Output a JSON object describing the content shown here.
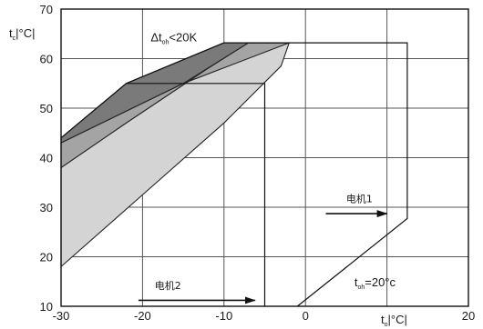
{
  "chart_data": {
    "type": "area",
    "title": "",
    "xlabel": {
      "main": "t",
      "sub": "o",
      "unit": "|°C|"
    },
    "ylabel": {
      "main": "t",
      "sub": "c",
      "unit": "|°C|"
    },
    "xlim": [
      -30,
      20
    ],
    "ylim": [
      10,
      70
    ],
    "x_ticks": [
      -30,
      -20,
      -10,
      0,
      10,
      20
    ],
    "x_tick_labels": [
      "-30",
      "-20",
      "-10",
      "0",
      "",
      "20"
    ],
    "y_ticks": [
      10,
      20,
      30,
      40,
      50,
      60,
      70
    ],
    "grid": true,
    "regions": [
      {
        "name": "light",
        "fill": "#d4d4d4",
        "points": [
          [
            -30,
            18
          ],
          [
            -20,
            32.5
          ],
          [
            -10,
            47
          ],
          [
            -3,
            58.5
          ],
          [
            -2,
            63.2
          ],
          [
            -12,
            58
          ],
          [
            -22,
            47
          ],
          [
            -30,
            38
          ]
        ]
      },
      {
        "name": "medium",
        "fill": "#a4a4a4",
        "points": [
          [
            -30,
            38
          ],
          [
            -22,
            47
          ],
          [
            -12,
            58
          ],
          [
            -7,
            63.2
          ],
          [
            -2,
            63.2
          ],
          [
            -15,
            55
          ],
          [
            -30,
            43
          ]
        ]
      },
      {
        "name": "dark",
        "fill": "#7a7a7a",
        "points": [
          [
            -30,
            43
          ],
          [
            -15,
            55
          ],
          [
            -7,
            63.2
          ],
          [
            -10,
            63.2
          ],
          [
            -22,
            55
          ],
          [
            -30,
            44
          ]
        ]
      }
    ],
    "boundaries": [
      {
        "name": "motor1-envelope",
        "points": [
          [
            -2,
            63.2
          ],
          [
            -10,
            63.2
          ],
          [
            -22,
            55
          ],
          [
            -30,
            44
          ]
        ],
        "closed": false
      },
      {
        "name": "motor1-right",
        "points": [
          [
            -7,
            63.2
          ],
          [
            12.5,
            63.2
          ],
          [
            12.5,
            27.7
          ],
          [
            -1,
            10
          ]
        ],
        "closed": false
      },
      {
        "name": "motor2-limit",
        "points": [
          [
            -22,
            55
          ],
          [
            -5,
            55
          ],
          [
            -5,
            10
          ]
        ],
        "closed": false
      }
    ],
    "annotations": [
      {
        "text": "Δt",
        "sub": "oh",
        "rest": "<20K",
        "x": -19,
        "y": 63.5
      },
      {
        "text": "电机1",
        "x": 5,
        "y": 31
      },
      {
        "text": "电机2",
        "x": -18.5,
        "y": 13.5
      },
      {
        "text": "t",
        "sub": "oh",
        "rest": "=20°c",
        "x": 6,
        "y": 14
      }
    ],
    "arrows": [
      {
        "name": "arrow-motor1",
        "from": [
          2.5,
          28.7
        ],
        "to": [
          10,
          28.7
        ]
      },
      {
        "name": "arrow-motor2",
        "from": [
          -20.5,
          11.2
        ],
        "to": [
          -6.2,
          11.2
        ]
      }
    ]
  }
}
